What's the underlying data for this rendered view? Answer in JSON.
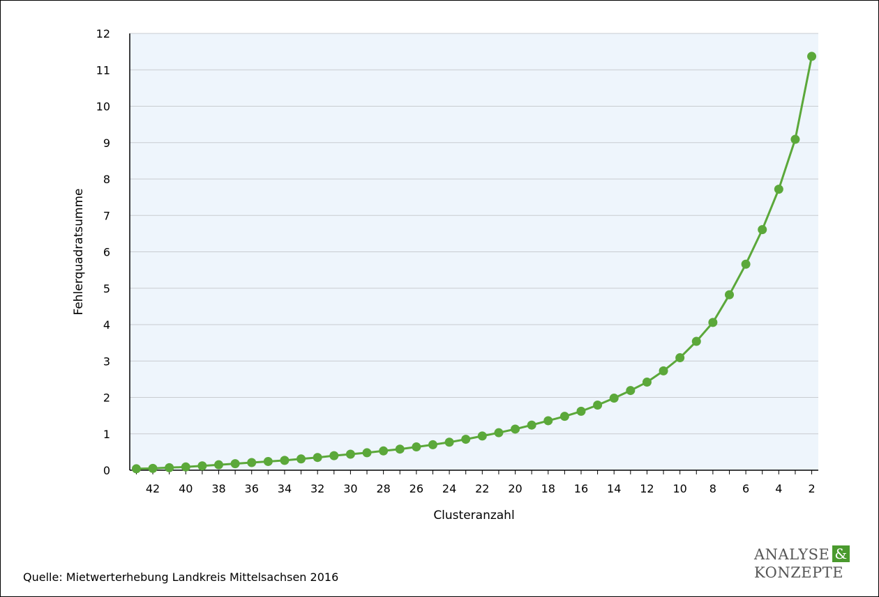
{
  "colors": {
    "plot_background": "#eef5fc",
    "series": "#5ba83a",
    "gridline": "#c8ccd0",
    "axis": "#000000",
    "logo_text": "#555555",
    "logo_accent": "#4a9a2e"
  },
  "source": "Quelle: Mietwerterhebung Landkreis Mittelsachsen 2016",
  "logo": {
    "line1": "ANALYSE",
    "amp": "&",
    "line2": "KONZEPTE"
  },
  "chart_data": {
    "type": "line",
    "title": "",
    "xlabel": "Clusteranzahl",
    "ylabel": "Fehlerquadratsumme",
    "x_reversed": true,
    "xlim": [
      43.4,
      1.6
    ],
    "ylim": [
      0,
      12
    ],
    "y_ticks": [
      0,
      1,
      2,
      3,
      4,
      5,
      6,
      7,
      8,
      9,
      10,
      11,
      12
    ],
    "x_ticks": [
      42,
      40,
      38,
      36,
      34,
      32,
      30,
      28,
      26,
      24,
      22,
      20,
      18,
      16,
      14,
      12,
      10,
      8,
      6,
      4,
      2
    ],
    "grid": "horizontal",
    "legend": "none",
    "series": [
      {
        "x": [
          43,
          42,
          41,
          40,
          39,
          38,
          37,
          36,
          35,
          34,
          33,
          32,
          31,
          30,
          29,
          28,
          27,
          26,
          25,
          24,
          23,
          22,
          21,
          20,
          19,
          18,
          17,
          16,
          15,
          14,
          13,
          12,
          11,
          10,
          9,
          8,
          7,
          6,
          5,
          4,
          3,
          2
        ],
        "y": [
          0.04,
          0.05,
          0.07,
          0.09,
          0.12,
          0.15,
          0.18,
          0.21,
          0.24,
          0.27,
          0.31,
          0.35,
          0.4,
          0.44,
          0.48,
          0.53,
          0.58,
          0.64,
          0.7,
          0.77,
          0.85,
          0.94,
          1.03,
          1.13,
          1.24,
          1.36,
          1.48,
          1.62,
          1.79,
          1.98,
          2.19,
          2.42,
          2.73,
          3.09,
          3.54,
          4.06,
          4.82,
          5.66,
          6.61,
          7.72,
          9.09,
          11.37
        ]
      }
    ]
  }
}
